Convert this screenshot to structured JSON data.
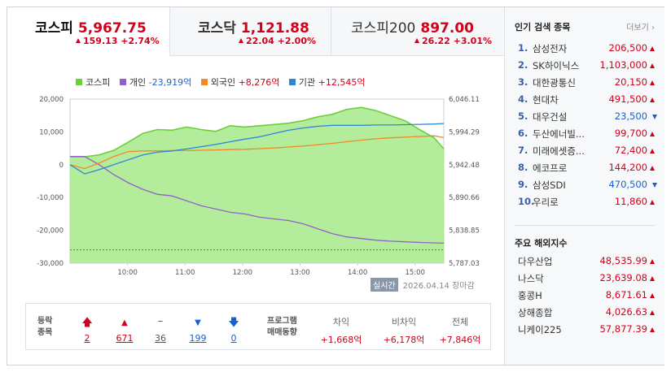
{
  "tabs": [
    {
      "name": "코스피",
      "price": "5,967.75",
      "change": "159.13 +2.74%",
      "active": true
    },
    {
      "name": "코스닥",
      "price": "1,121.88",
      "change": "22.04 +2.00%",
      "active": false
    },
    {
      "name": "코스피200",
      "price": "897.00",
      "change": "26.22 +3.01%",
      "active": false
    }
  ],
  "legend": {
    "kospi": "코스피",
    "individual_label": "개인",
    "individual_value": "-23,919억",
    "foreign_label": "외국인",
    "foreign_value": "+8,276억",
    "institution_label": "기관",
    "institution_value": "+12,545억"
  },
  "chart_data": {
    "type": "area",
    "title": "",
    "x_ticks": [
      "10:00",
      "11:00",
      "12:00",
      "13:00",
      "14:00",
      "15:00"
    ],
    "left_axis": {
      "ticks": [
        "20,000",
        "10,000",
        "0",
        "-10,000",
        "-20,000",
        "-30,000"
      ],
      "ylim": [
        -30000,
        20000
      ],
      "unit": "억"
    },
    "right_axis": {
      "ticks": [
        "6,046.11",
        "5,994.29",
        "5,942.48",
        "5,890.66",
        "5,838.85",
        "5,787.03"
      ],
      "ylim": [
        5787.03,
        6046.11
      ]
    },
    "x_minutes": [
      0,
      15,
      30,
      45,
      60,
      75,
      90,
      105,
      120,
      135,
      150,
      165,
      180,
      195,
      210,
      225,
      240,
      255,
      270,
      285,
      300,
      315,
      330,
      345,
      360,
      375,
      385
    ],
    "series": [
      {
        "name": "코스피",
        "color": "#6ccf3a",
        "values": [
          5955,
          5955,
          5958,
          5965,
          5978,
          5992,
          5998,
          5997,
          6002,
          5998,
          5995,
          6004,
          6002,
          6004,
          6006,
          6008,
          6012,
          6018,
          6022,
          6030,
          6033,
          6028,
          6020,
          6012,
          5998,
          5985,
          5967.75
        ]
      },
      {
        "name": "개인",
        "color": "#8e63c8",
        "values": [
          2500,
          2500,
          0,
          -3000,
          -5500,
          -7500,
          -9000,
          -9500,
          -11000,
          -12500,
          -13500,
          -14500,
          -15000,
          -16000,
          -16500,
          -17000,
          -18000,
          -19500,
          -21000,
          -22000,
          -22500,
          -23000,
          -23300,
          -23500,
          -23700,
          -23800,
          -23919
        ]
      },
      {
        "name": "외국인",
        "color": "#f08a24",
        "values": [
          0,
          -1200,
          500,
          2500,
          4000,
          4200,
          4200,
          4300,
          4300,
          4400,
          4500,
          4600,
          4700,
          4900,
          5100,
          5400,
          5700,
          6100,
          6500,
          7000,
          7500,
          7900,
          8200,
          8400,
          8600,
          8800,
          8276
        ]
      },
      {
        "name": "기관",
        "color": "#2f86d8",
        "values": [
          0,
          -2800,
          -1500,
          0,
          1500,
          3000,
          3800,
          4200,
          4800,
          5500,
          6200,
          7000,
          7800,
          8500,
          9500,
          10500,
          11200,
          11700,
          12000,
          12000,
          12000,
          12100,
          12100,
          12200,
          12300,
          12400,
          12545
        ]
      }
    ],
    "baseline": {
      "axis": "right",
      "value": 5808,
      "style": "dashed",
      "color": "#4d8b2e"
    }
  },
  "tagline": {
    "realtime": "실시간",
    "date": "2026.04.14",
    "status": "장마감"
  },
  "stats": {
    "row_label_1": "등락",
    "row_label_2": "종목",
    "upper_limit": "2",
    "rise": "671",
    "flat": "36",
    "fall": "199",
    "lower_limit": "0",
    "program_label_1": "프로그램",
    "program_label_2": "매매동향",
    "arbitrage_label": "차익",
    "arbitrage_value": "+1,668억",
    "non_arbitrage_label": "비차익",
    "non_arbitrage_value": "+6,178억",
    "total_label": "전체",
    "total_value": "+7,846억"
  },
  "popular": {
    "title": "인기 검색 종목",
    "more": "더보기",
    "items": [
      {
        "rank": "1.",
        "name": "삼성전자",
        "price": "206,500",
        "dir": "up"
      },
      {
        "rank": "2.",
        "name": "SK하이닉스",
        "price": "1,103,000",
        "dir": "up"
      },
      {
        "rank": "3.",
        "name": "대한광통신",
        "price": "20,150",
        "dir": "up"
      },
      {
        "rank": "4.",
        "name": "현대차",
        "price": "491,500",
        "dir": "up"
      },
      {
        "rank": "5.",
        "name": "대우건설",
        "price": "23,500",
        "dir": "down"
      },
      {
        "rank": "6.",
        "name": "두산에너빌...",
        "price": "99,700",
        "dir": "up"
      },
      {
        "rank": "7.",
        "name": "미래에셋증...",
        "price": "72,400",
        "dir": "up"
      },
      {
        "rank": "8.",
        "name": "에코프로",
        "price": "144,200",
        "dir": "up"
      },
      {
        "rank": "9.",
        "name": "삼성SDI",
        "price": "470,500",
        "dir": "down"
      },
      {
        "rank": "10.",
        "name": "우리로",
        "price": "11,860",
        "dir": "up"
      }
    ]
  },
  "overseas": {
    "title": "주요 해외지수",
    "items": [
      {
        "name": "다우산업",
        "price": "48,535.99",
        "dir": "up"
      },
      {
        "name": "나스닥",
        "price": "23,639.08",
        "dir": "up"
      },
      {
        "name": "홍콩H",
        "price": "8,671.61",
        "dir": "up"
      },
      {
        "name": "상해종합",
        "price": "4,026.63",
        "dir": "up"
      },
      {
        "name": "니케이225",
        "price": "57,877.39",
        "dir": "up"
      }
    ]
  },
  "colors": {
    "up": "#d0021b",
    "down": "#1a5fd0",
    "kospi_fill": "#a6e98a"
  }
}
